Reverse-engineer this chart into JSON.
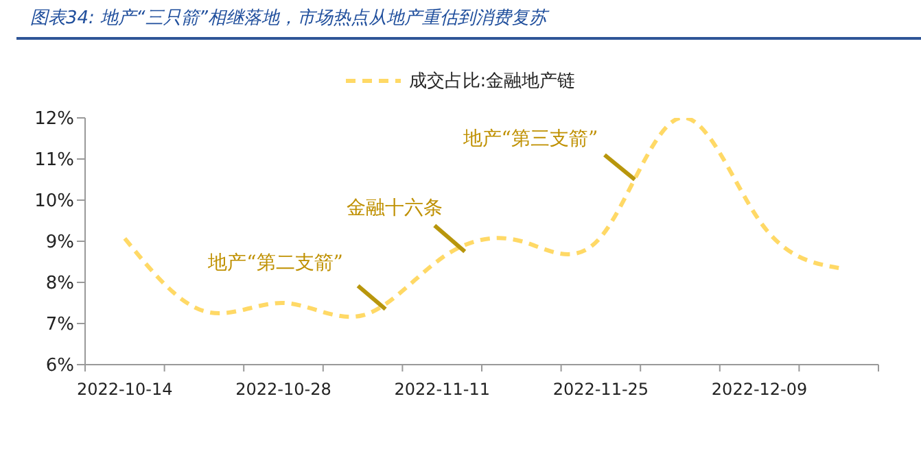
{
  "chart_data": {
    "type": "line",
    "title": "图表34:  地产“三只箭”相继落地，市场热点从地产重估到消费复苏",
    "x": [
      "2022-10-14",
      "2022-10-21",
      "2022-10-28",
      "2022-11-04",
      "2022-11-11",
      "2022-11-18",
      "2022-11-25",
      "2022-12-02",
      "2022-12-09",
      "2022-12-16"
    ],
    "series": [
      {
        "name": "成交占比:金融地产链",
        "color": "#ffd966",
        "values": [
          9.07,
          7.3,
          7.5,
          7.2,
          8.6,
          9.0,
          9.1,
          12.0,
          9.5,
          8.35
        ]
      }
    ],
    "xlim": [
      "2022-10-10T12:00",
      "2022-12-19T12:00"
    ],
    "xticks": [
      {
        "value": "2022-10-10T12:00",
        "label": null
      },
      {
        "value": "2022-10-14",
        "label": "2022-10-14"
      },
      {
        "value": "2022-10-17T12:00",
        "label": null
      },
      {
        "value": "2022-10-24T12:00",
        "label": null
      },
      {
        "value": "2022-10-28",
        "label": "2022-10-28"
      },
      {
        "value": "2022-10-31T12:00",
        "label": null
      },
      {
        "value": "2022-11-07T12:00",
        "label": null
      },
      {
        "value": "2022-11-11",
        "label": "2022-11-11"
      },
      {
        "value": "2022-11-14T12:00",
        "label": null
      },
      {
        "value": "2022-11-21T12:00",
        "label": null
      },
      {
        "value": "2022-11-25",
        "label": "2022-11-25"
      },
      {
        "value": "2022-11-28T12:00",
        "label": null
      },
      {
        "value": "2022-12-05T12:00",
        "label": null
      },
      {
        "value": "2022-12-09",
        "label": "2022-12-09"
      },
      {
        "value": "2022-12-12T12:00",
        "label": null
      },
      {
        "value": "2022-12-19T12:00",
        "label": null
      }
    ],
    "ylim": [
      6,
      12
    ],
    "yticks": [
      {
        "value": 6,
        "label": "6%"
      },
      {
        "value": 7,
        "label": "7%"
      },
      {
        "value": 8,
        "label": "8%"
      },
      {
        "value": 9,
        "label": "9%"
      },
      {
        "value": 10,
        "label": "10%"
      },
      {
        "value": 11,
        "label": "11%"
      },
      {
        "value": 12,
        "label": "12%"
      }
    ],
    "annotations": [
      {
        "text": "地产“第二支箭”",
        "x": "2022-11-06",
        "y": 7.35
      },
      {
        "text": "金融十六条",
        "x": "2022-11-13",
        "y": 8.75
      },
      {
        "text": "地产“第三支箭”",
        "x": "2022-11-28",
        "y": 10.5
      }
    ],
    "grid": false,
    "legend": "top",
    "marker": "none",
    "line_style": "dashed"
  }
}
